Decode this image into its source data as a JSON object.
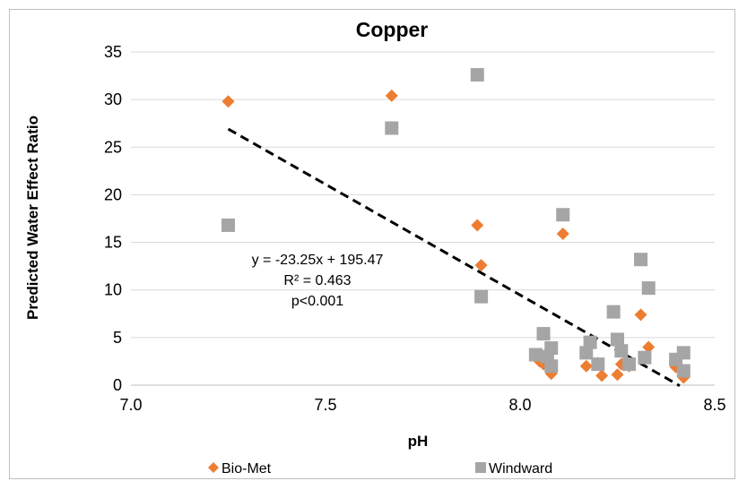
{
  "chart_data": {
    "type": "scatter",
    "title": "Copper",
    "xlabel": "pH",
    "ylabel": "Predicted Water Effect Ratio",
    "xlim": [
      7.0,
      8.5
    ],
    "ylim": [
      0,
      35
    ],
    "x_ticks": [
      "7.0",
      "7.5",
      "8.0",
      "8.5"
    ],
    "y_ticks": [
      "0",
      "5",
      "10",
      "15",
      "20",
      "25",
      "30",
      "35"
    ],
    "grid": "horizontal",
    "legend_position": "bottom",
    "series": [
      {
        "name": "Bio-Met",
        "marker": "diamond",
        "color": "#ED7D31",
        "points": [
          [
            7.25,
            29.8
          ],
          [
            7.67,
            30.4
          ],
          [
            7.89,
            16.8
          ],
          [
            7.9,
            12.6
          ],
          [
            8.11,
            15.9
          ],
          [
            8.05,
            2.5
          ],
          [
            8.06,
            2.2
          ],
          [
            8.07,
            2.8
          ],
          [
            8.08,
            1.2
          ],
          [
            8.17,
            2.0
          ],
          [
            8.2,
            2.3
          ],
          [
            8.21,
            1.0
          ],
          [
            8.25,
            1.1
          ],
          [
            8.26,
            2.2
          ],
          [
            8.28,
            2.0
          ],
          [
            8.31,
            7.4
          ],
          [
            8.33,
            4.0
          ],
          [
            8.4,
            1.9
          ],
          [
            8.42,
            0.8
          ],
          [
            8.42,
            1.5
          ]
        ]
      },
      {
        "name": "Windward",
        "marker": "square",
        "color": "#A5A5A5",
        "points": [
          [
            7.25,
            16.8
          ],
          [
            7.67,
            27.0
          ],
          [
            7.89,
            32.6
          ],
          [
            7.9,
            9.3
          ],
          [
            8.11,
            17.9
          ],
          [
            8.04,
            3.2
          ],
          [
            8.06,
            5.4
          ],
          [
            8.07,
            3.0
          ],
          [
            8.08,
            3.9
          ],
          [
            8.08,
            2.0
          ],
          [
            8.17,
            3.4
          ],
          [
            8.18,
            4.5
          ],
          [
            8.2,
            2.2
          ],
          [
            8.24,
            7.7
          ],
          [
            8.25,
            4.8
          ],
          [
            8.26,
            3.6
          ],
          [
            8.28,
            2.2
          ],
          [
            8.31,
            13.2
          ],
          [
            8.32,
            2.9
          ],
          [
            8.33,
            10.2
          ],
          [
            8.4,
            2.7
          ],
          [
            8.42,
            3.4
          ],
          [
            8.42,
            1.5
          ]
        ]
      }
    ],
    "trendline": {
      "style": "dashed",
      "color": "#000000",
      "slope": -23.25,
      "intercept": 195.47,
      "x_range": [
        7.25,
        8.41
      ]
    },
    "annotations": [
      "y = -23.25x + 195.47",
      "R² = 0.463",
      "p<0.001"
    ]
  }
}
